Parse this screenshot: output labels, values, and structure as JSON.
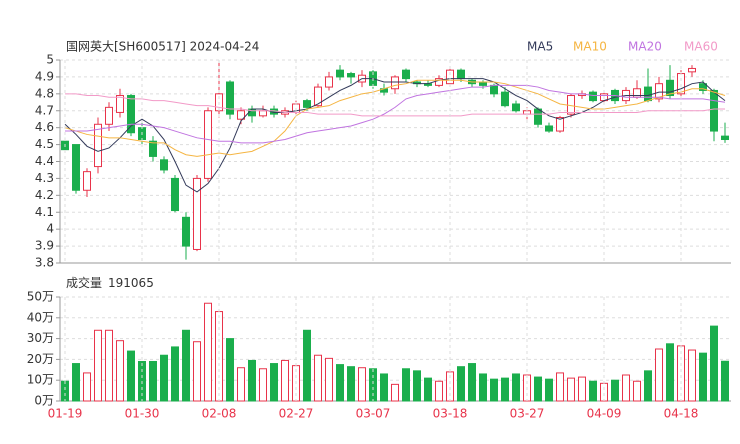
{
  "chart_data": [
    {
      "type": "candlestick",
      "title": "国网英大[SH600517] 2024-04-24",
      "up_color": "#e8334a",
      "down_color": "#1aae4c",
      "open": [
        4.52,
        4.5,
        4.23,
        4.37,
        4.62,
        4.69,
        4.79,
        4.6,
        4.52,
        4.41,
        4.3,
        4.07,
        3.88,
        4.3,
        4.7,
        4.87,
        4.65,
        4.71,
        4.67,
        4.71,
        4.68,
        4.69,
        4.76,
        4.73,
        4.84,
        4.94,
        4.92,
        4.87,
        4.93,
        4.83,
        4.83,
        4.94,
        4.87,
        4.86,
        4.85,
        4.86,
        4.94,
        4.88,
        4.87,
        4.85,
        4.81,
        4.74,
        4.68,
        4.71,
        4.61,
        4.58,
        4.68,
        4.79,
        4.81,
        4.76,
        4.82,
        4.76,
        4.78,
        4.84,
        4.77,
        4.88,
        4.8,
        4.93,
        4.86,
        4.82,
        4.55
      ],
      "high": [
        4.54,
        4.5,
        4.36,
        4.66,
        4.75,
        4.83,
        4.8,
        4.65,
        4.55,
        4.43,
        4.32,
        4.1,
        4.32,
        4.72,
        4.99,
        4.88,
        4.72,
        4.73,
        4.73,
        4.73,
        4.72,
        4.76,
        4.77,
        4.86,
        4.93,
        4.97,
        4.93,
        4.94,
        4.94,
        4.86,
        4.91,
        4.95,
        4.88,
        4.88,
        4.91,
        4.95,
        4.95,
        4.89,
        4.88,
        4.86,
        4.84,
        4.76,
        4.72,
        4.72,
        4.63,
        4.67,
        4.8,
        4.82,
        4.82,
        4.82,
        4.83,
        4.84,
        4.88,
        4.95,
        4.9,
        4.97,
        4.94,
        4.97,
        4.88,
        4.83,
        4.63
      ],
      "low": [
        4.46,
        4.21,
        4.19,
        4.33,
        4.58,
        4.66,
        4.55,
        4.5,
        4.4,
        4.33,
        4.1,
        3.82,
        3.87,
        4.28,
        4.66,
        4.65,
        4.62,
        4.63,
        4.66,
        4.66,
        4.66,
        4.67,
        4.7,
        4.72,
        4.82,
        4.88,
        4.86,
        4.84,
        4.83,
        4.79,
        4.8,
        4.87,
        4.84,
        4.84,
        4.84,
        4.85,
        4.87,
        4.84,
        4.83,
        4.78,
        4.72,
        4.69,
        4.65,
        4.6,
        4.57,
        4.57,
        4.66,
        4.77,
        4.75,
        4.75,
        4.74,
        4.74,
        4.77,
        4.75,
        4.75,
        4.77,
        4.78,
        4.9,
        4.8,
        4.52,
        4.51
      ],
      "close": [
        4.47,
        4.23,
        4.34,
        4.62,
        4.72,
        4.79,
        4.57,
        4.53,
        4.43,
        4.35,
        4.11,
        3.9,
        4.3,
        4.7,
        4.8,
        4.68,
        4.7,
        4.67,
        4.7,
        4.68,
        4.7,
        4.74,
        4.72,
        4.84,
        4.9,
        4.9,
        4.9,
        4.91,
        4.85,
        4.81,
        4.9,
        4.89,
        4.86,
        4.85,
        4.89,
        4.94,
        4.89,
        4.86,
        4.85,
        4.8,
        4.73,
        4.7,
        4.7,
        4.62,
        4.58,
        4.66,
        4.79,
        4.8,
        4.76,
        4.8,
        4.76,
        4.82,
        4.83,
        4.76,
        4.86,
        4.79,
        4.92,
        4.95,
        4.82,
        4.58,
        4.53
      ],
      "series": [
        {
          "name": "MA5",
          "color": "#333a5a",
          "values": [
            4.62,
            4.56,
            4.49,
            4.46,
            4.48,
            4.54,
            4.61,
            4.65,
            4.61,
            4.53,
            4.4,
            4.26,
            4.22,
            4.27,
            4.36,
            4.48,
            4.64,
            4.71,
            4.71,
            4.69,
            4.69,
            4.7,
            4.71,
            4.74,
            4.78,
            4.82,
            4.85,
            4.89,
            4.89,
            4.87,
            4.87,
            4.87,
            4.86,
            4.86,
            4.88,
            4.89,
            4.89,
            4.89,
            4.89,
            4.87,
            4.83,
            4.79,
            4.76,
            4.71,
            4.67,
            4.65,
            4.67,
            4.69,
            4.72,
            4.76,
            4.78,
            4.79,
            4.79,
            4.79,
            4.81,
            4.81,
            4.83,
            4.86,
            4.87,
            4.81,
            4.76
          ]
        },
        {
          "name": "MA10",
          "color": "#f5b542",
          "values": [
            4.6,
            4.58,
            4.56,
            4.55,
            4.54,
            4.54,
            4.53,
            4.52,
            4.51,
            4.51,
            4.47,
            4.44,
            4.43,
            4.44,
            4.45,
            4.44,
            4.45,
            4.46,
            4.49,
            4.52,
            4.58,
            4.67,
            4.71,
            4.72,
            4.73,
            4.76,
            4.78,
            4.8,
            4.81,
            4.83,
            4.85,
            4.86,
            4.88,
            4.88,
            4.88,
            4.88,
            4.88,
            4.87,
            4.87,
            4.87,
            4.86,
            4.84,
            4.82,
            4.8,
            4.77,
            4.74,
            4.73,
            4.72,
            4.71,
            4.71,
            4.72,
            4.73,
            4.74,
            4.76,
            4.78,
            4.8,
            4.81,
            4.83,
            4.83,
            4.81,
            4.79
          ]
        },
        {
          "name": "MA20",
          "color": "#c074e0",
          "values": [
            4.58,
            4.58,
            4.58,
            4.59,
            4.6,
            4.61,
            4.62,
            4.62,
            4.61,
            4.6,
            4.58,
            4.56,
            4.54,
            4.53,
            4.52,
            4.52,
            4.51,
            4.51,
            4.51,
            4.52,
            4.53,
            4.55,
            4.57,
            4.58,
            4.59,
            4.6,
            4.61,
            4.63,
            4.65,
            4.68,
            4.72,
            4.77,
            4.79,
            4.8,
            4.81,
            4.82,
            4.83,
            4.84,
            4.84,
            4.85,
            4.85,
            4.85,
            4.85,
            4.84,
            4.82,
            4.81,
            4.8,
            4.8,
            4.79,
            4.79,
            4.79,
            4.78,
            4.78,
            4.78,
            4.78,
            4.77,
            4.77,
            4.77,
            4.77,
            4.76,
            4.75
          ]
        },
        {
          "name": "MA60",
          "color": "#f29ac8",
          "values": [
            4.8,
            4.8,
            4.79,
            4.79,
            4.78,
            4.78,
            4.77,
            4.77,
            4.76,
            4.76,
            4.75,
            4.74,
            4.73,
            4.73,
            4.72,
            4.71,
            4.71,
            4.7,
            4.7,
            4.7,
            4.69,
            4.69,
            4.69,
            4.68,
            4.68,
            4.68,
            4.68,
            4.67,
            4.67,
            4.67,
            4.67,
            4.67,
            4.67,
            4.67,
            4.67,
            4.67,
            4.67,
            4.68,
            4.68,
            4.68,
            4.68,
            4.68,
            4.68,
            4.68,
            4.68,
            4.69,
            4.69,
            4.69,
            4.69,
            4.69,
            4.69,
            4.69,
            4.69,
            4.7,
            4.7,
            4.7,
            4.7,
            4.7,
            4.7,
            4.71,
            4.71
          ]
        }
      ],
      "ylim": [
        3.8,
        5
      ],
      "yticks": [
        3.8,
        3.9,
        4,
        4.1,
        4.2,
        4.3,
        4.4,
        4.5,
        4.6,
        4.7,
        4.8,
        4.9,
        5
      ],
      "grid": true
    },
    {
      "type": "bar",
      "title": "成交量",
      "categories": [
        "01-19",
        null,
        null,
        null,
        null,
        null,
        null,
        "01-30",
        null,
        null,
        null,
        null,
        null,
        null,
        "02-08",
        null,
        null,
        null,
        null,
        null,
        null,
        "02-27",
        null,
        null,
        null,
        null,
        null,
        null,
        "03-07",
        null,
        null,
        null,
        null,
        null,
        null,
        "03-18",
        null,
        null,
        null,
        null,
        null,
        null,
        "03-27",
        null,
        null,
        null,
        null,
        null,
        null,
        "04-09",
        null,
        null,
        null,
        null,
        null,
        null,
        "04-18",
        null,
        null,
        null,
        null
      ],
      "values": [
        95000,
        180000,
        135000,
        340000,
        340000,
        290000,
        240000,
        190000,
        190000,
        220000,
        260000,
        340000,
        285000,
        470000,
        430000,
        300000,
        160000,
        195000,
        155000,
        180000,
        195000,
        170000,
        340000,
        220000,
        205000,
        175000,
        165000,
        160000,
        155000,
        130000,
        80000,
        155000,
        145000,
        110000,
        95000,
        140000,
        165000,
        180000,
        130000,
        105000,
        110000,
        130000,
        125000,
        115000,
        105000,
        135000,
        110000,
        115000,
        95000,
        85000,
        100000,
        125000,
        95000,
        145000,
        250000,
        275000,
        265000,
        245000,
        230000,
        360000,
        191065
      ],
      "ylim": [
        0,
        500000
      ],
      "yticks": [
        {
          "value": 0,
          "label": "0万"
        },
        {
          "value": 100000,
          "label": "10万"
        },
        {
          "value": 200000,
          "label": "20万"
        },
        {
          "value": 300000,
          "label": "30万"
        },
        {
          "value": 400000,
          "label": "40万"
        },
        {
          "value": 500000,
          "label": "50万"
        }
      ],
      "xtick_color": "#e8334a",
      "grid": true
    }
  ]
}
